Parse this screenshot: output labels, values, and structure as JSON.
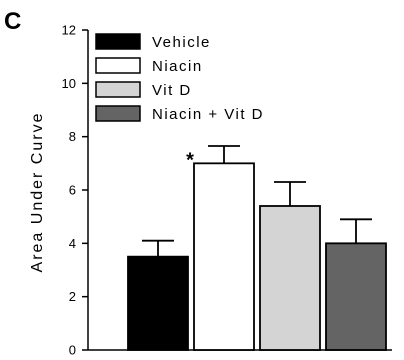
{
  "panel_label": "C",
  "chart_data": {
    "type": "bar",
    "title": "",
    "xlabel": "",
    "ylabel": "Area Under Curve",
    "ylim": [
      0,
      12
    ],
    "yticks": [
      "0",
      "2",
      "4",
      "6",
      "8",
      "10",
      "12"
    ],
    "grid": false,
    "legend_position": "top-left",
    "categories": [
      "Vehicle",
      "Niacin",
      "Vit D",
      "Niacin + Vit D"
    ],
    "series": [
      {
        "name": "Vehicle",
        "value": 3.5,
        "error": 0.6,
        "color": "#000000"
      },
      {
        "name": "Niacin",
        "value": 7.0,
        "error": 0.65,
        "color": "#ffffff",
        "annotation": "*"
      },
      {
        "name": "Vit D",
        "value": 5.4,
        "error": 0.9,
        "color": "#d4d4d4"
      },
      {
        "name": "Niacin + Vit D",
        "value": 4.0,
        "error": 0.9,
        "color": "#646464"
      }
    ]
  }
}
